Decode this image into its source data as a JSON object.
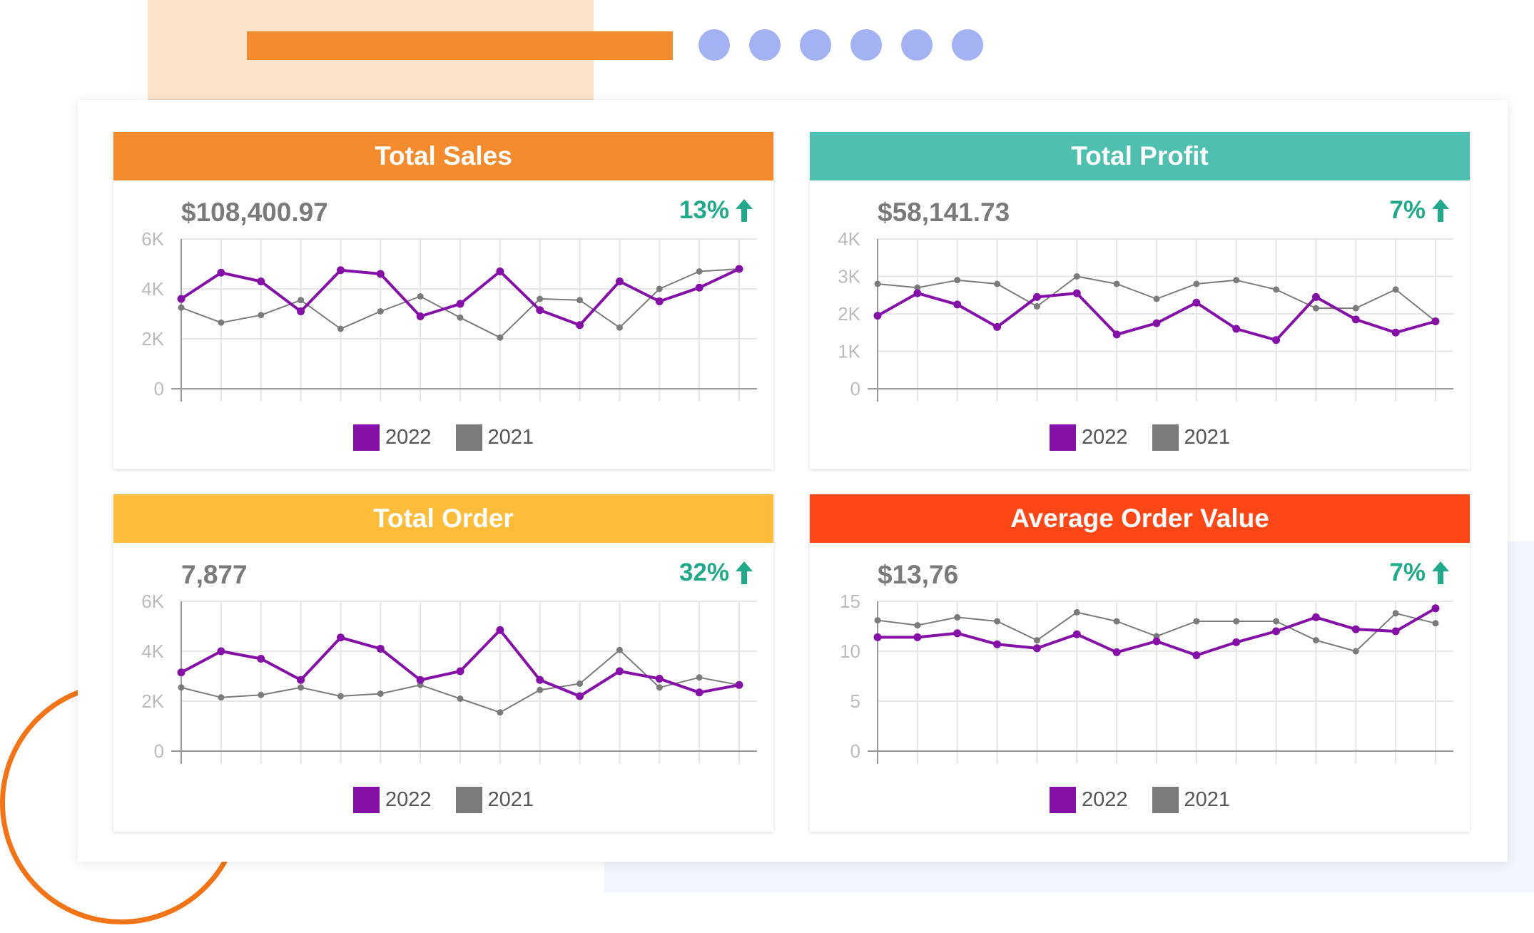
{
  "colors": {
    "series_2022": "#8510a8",
    "series_2021": "#7b7b7b",
    "positive": "#22a98c",
    "axis": "#999999",
    "grid": "#e6e6e6",
    "tick_label": "#bbbbbb"
  },
  "cards": [
    {
      "title": "Total Sales",
      "header_color": "#f48c2f",
      "value": "$108,400.97",
      "change": "13%",
      "change_icon": "arrow-up-icon"
    },
    {
      "title": "Total Profit",
      "header_color": "#4fc0b0",
      "value": "$58,141.73",
      "change": "7%",
      "change_icon": "arrow-up-icon"
    },
    {
      "title": "Total Order",
      "header_color": "#fdbd3b",
      "value": "7,877",
      "change": "32%",
      "change_icon": "arrow-up-icon"
    },
    {
      "title": "Average Order Value",
      "header_color": "#fd4716",
      "value": "$13,76",
      "change": "7%",
      "change_icon": "arrow-up-icon"
    }
  ],
  "chart_data": [
    {
      "type": "line",
      "title": "Total Sales",
      "x": [
        1,
        2,
        3,
        4,
        5,
        6,
        7,
        8,
        9,
        10,
        11,
        12,
        13,
        14,
        15
      ],
      "ylim": [
        0,
        6000
      ],
      "yticks": [
        0,
        2000,
        4000,
        6000
      ],
      "ytick_labels": [
        "0",
        "2K",
        "4K",
        "6K"
      ],
      "grid": true,
      "legend_position": "bottom",
      "series": [
        {
          "name": "2022",
          "values": [
            3600,
            4650,
            4300,
            3100,
            4750,
            4600,
            2900,
            3400,
            4700,
            3150,
            2550,
            4300,
            3500,
            4050,
            4800
          ]
        },
        {
          "name": "2021",
          "values": [
            3250,
            2650,
            2950,
            3550,
            2400,
            3100,
            3700,
            2850,
            2050,
            3600,
            3550,
            2450,
            4000,
            4700,
            4800
          ]
        }
      ]
    },
    {
      "type": "line",
      "title": "Total Profit",
      "x": [
        1,
        2,
        3,
        4,
        5,
        6,
        7,
        8,
        9,
        10,
        11,
        12,
        13,
        14,
        15
      ],
      "ylim": [
        0,
        4000
      ],
      "yticks": [
        0,
        1000,
        2000,
        3000,
        4000
      ],
      "ytick_labels": [
        "0",
        "1K",
        "2K",
        "3K",
        "4K"
      ],
      "grid": true,
      "legend_position": "bottom",
      "series": [
        {
          "name": "2022",
          "values": [
            1950,
            2550,
            2250,
            1650,
            2450,
            2550,
            1450,
            1750,
            2300,
            1600,
            1300,
            2450,
            1850,
            1500,
            1800
          ]
        },
        {
          "name": "2021",
          "values": [
            2800,
            2700,
            2900,
            2800,
            2200,
            3000,
            2800,
            2400,
            2800,
            2900,
            2650,
            2150,
            2150,
            2650,
            1800
          ]
        }
      ]
    },
    {
      "type": "line",
      "title": "Total Order",
      "x": [
        1,
        2,
        3,
        4,
        5,
        6,
        7,
        8,
        9,
        10,
        11,
        12,
        13,
        14,
        15
      ],
      "ylim": [
        0,
        6000
      ],
      "yticks": [
        0,
        2000,
        4000,
        6000
      ],
      "ytick_labels": [
        "0",
        "2K",
        "4K",
        "6K"
      ],
      "grid": true,
      "legend_position": "bottom",
      "series": [
        {
          "name": "2022",
          "values": [
            3150,
            4000,
            3700,
            2850,
            4550,
            4100,
            2850,
            3200,
            4850,
            2850,
            2200,
            3200,
            2900,
            2350,
            2650
          ]
        },
        {
          "name": "2021",
          "values": [
            2550,
            2150,
            2250,
            2550,
            2200,
            2300,
            2650,
            2100,
            1550,
            2450,
            2700,
            4050,
            2550,
            2950,
            2650
          ]
        }
      ]
    },
    {
      "type": "line",
      "title": "Average Order Value",
      "x": [
        1,
        2,
        3,
        4,
        5,
        6,
        7,
        8,
        9,
        10,
        11,
        12,
        13,
        14,
        15
      ],
      "ylim": [
        0,
        15
      ],
      "yticks": [
        0,
        5,
        10,
        15
      ],
      "ytick_labels": [
        "0",
        "5",
        "10",
        "15"
      ],
      "grid": true,
      "legend_position": "bottom",
      "series": [
        {
          "name": "2022",
          "values": [
            11.4,
            11.4,
            11.8,
            10.7,
            10.3,
            11.7,
            9.9,
            11.0,
            9.6,
            10.9,
            12.0,
            13.4,
            12.2,
            12.0,
            14.3
          ]
        },
        {
          "name": "2021",
          "values": [
            13.1,
            12.6,
            13.4,
            13.0,
            11.1,
            13.9,
            13.0,
            11.5,
            13.0,
            13.0,
            13.0,
            11.1,
            10.0,
            13.8,
            12.8
          ]
        }
      ]
    }
  ]
}
